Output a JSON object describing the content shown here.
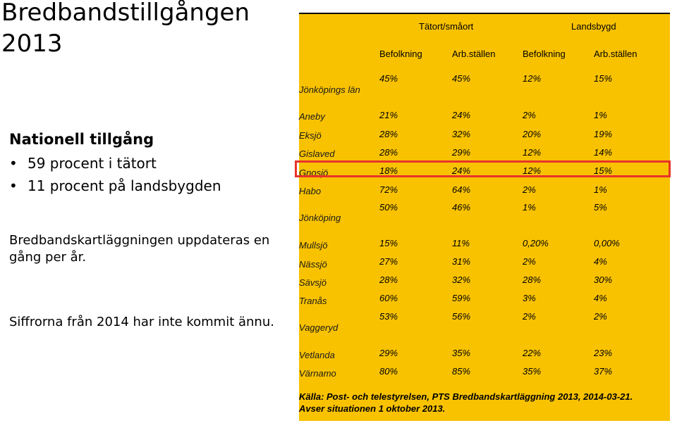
{
  "title": {
    "line1": "Bredbandstillgången",
    "line2": "2013"
  },
  "left": {
    "heading": "Nationell tillgång",
    "bullets": [
      "59 procent i tätort",
      "11 procent på landsbygden"
    ],
    "bullet_char": "•",
    "paragraph1": "Bredbandskartläggningen uppdateras en gång per år.",
    "paragraph2": "Siffrorna från 2014 har inte kommit ännu."
  },
  "table": {
    "group_headers": [
      "Tätort/småort",
      "Landsbygd"
    ],
    "column_headers": [
      "Befolkning",
      "Arb.ställen",
      "Befolkning",
      "Arb.ställen"
    ],
    "rows": [
      {
        "name": "Jönköpings län",
        "values": [
          "45%",
          "45%",
          "12%",
          "15%"
        ]
      },
      {
        "name": "Aneby",
        "values": [
          "21%",
          "24%",
          "2%",
          "1%"
        ]
      },
      {
        "name": "Eksjö",
        "values": [
          "28%",
          "32%",
          "20%",
          "19%"
        ]
      },
      {
        "name": "Gislaved",
        "values": [
          "28%",
          "29%",
          "12%",
          "14%"
        ]
      },
      {
        "name": "Gnosjö",
        "values": [
          "18%",
          "24%",
          "12%",
          "15%"
        ]
      },
      {
        "name": "Habo",
        "values": [
          "72%",
          "64%",
          "2%",
          "1%"
        ]
      },
      {
        "name": "Jönköping",
        "values": [
          "50%",
          "46%",
          "1%",
          "5%"
        ]
      },
      {
        "name": "Mullsjö",
        "values": [
          "15%",
          "11%",
          "0,20%",
          "0,00%"
        ]
      },
      {
        "name": "Nässjö",
        "values": [
          "27%",
          "31%",
          "2%",
          "4%"
        ]
      },
      {
        "name": "Sävsjö",
        "values": [
          "28%",
          "32%",
          "28%",
          "30%"
        ]
      },
      {
        "name": "Tranås",
        "values": [
          "60%",
          "59%",
          "3%",
          "4%"
        ]
      },
      {
        "name": "Vaggeryd",
        "values": [
          "53%",
          "56%",
          "2%",
          "2%"
        ]
      },
      {
        "name": "Vetlanda",
        "values": [
          "29%",
          "35%",
          "22%",
          "23%"
        ]
      },
      {
        "name": "Värnamo",
        "values": [
          "80%",
          "85%",
          "35%",
          "37%"
        ]
      }
    ],
    "highlighted_row": "Gnosjö",
    "source_line1": "Källa: Post- och telestyrelsen, PTS Bredbandskartläggning 2013, 2014-03-21.",
    "source_line2": "Avser situationen 1 oktober 2013."
  },
  "colors": {
    "panel": "#f8c200",
    "highlight": "#e8332a"
  }
}
